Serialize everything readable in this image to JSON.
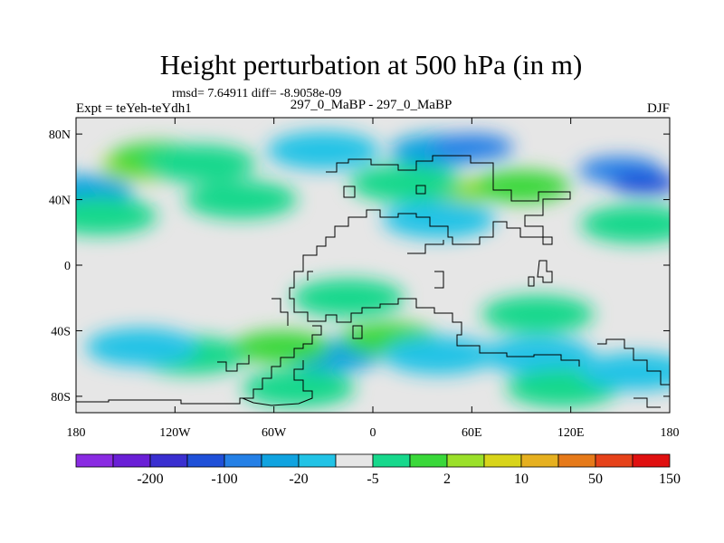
{
  "chart_data": {
    "type": "heatmap",
    "title": "Height perturbation at 500 hPa (in m)",
    "subtitle": "rmsd= 7.64911 diff= -8.9058e-09",
    "left_label": "Expt = teYeh-teYdh1",
    "center_label": "297_0_MaBP - 297_0_MaBP",
    "right_label": "DJF",
    "xlim": [
      -180,
      180
    ],
    "ylim": [
      -90,
      90
    ],
    "x_ticks": [
      {
        "value": -180,
        "label": "180"
      },
      {
        "value": -120,
        "label": "120W"
      },
      {
        "value": -60,
        "label": "60W"
      },
      {
        "value": 0,
        "label": "0"
      },
      {
        "value": 60,
        "label": "60E"
      },
      {
        "value": 120,
        "label": "120E"
      },
      {
        "value": 180,
        "label": "180"
      }
    ],
    "y_ticks": [
      {
        "value": 80,
        "label": "80N"
      },
      {
        "value": 40,
        "label": "40N"
      },
      {
        "value": 0,
        "label": "0"
      },
      {
        "value": -40,
        "label": "40S"
      },
      {
        "value": -80,
        "label": "80S"
      }
    ],
    "colorbar": {
      "colors": [
        "#8a2be2",
        "#6a1fd6",
        "#3a2fd0",
        "#1f50d8",
        "#2580e6",
        "#10a3e0",
        "#22c3e6",
        "#e6e6e6",
        "#17d88c",
        "#3ad83a",
        "#9be02a",
        "#d8d41a",
        "#e6b020",
        "#e67a1a",
        "#e6421a",
        "#e01010"
      ],
      "labels": [
        {
          "boundary": 2,
          "text": "-200"
        },
        {
          "boundary": 4,
          "text": "-100"
        },
        {
          "boundary": 6,
          "text": "-20"
        },
        {
          "boundary": 8,
          "text": "-5"
        },
        {
          "boundary": 10,
          "text": "2"
        },
        {
          "boundary": 12,
          "text": "10"
        },
        {
          "boundary": 14,
          "text": "50"
        },
        {
          "boundary": 16,
          "text": "150"
        }
      ]
    },
    "field_blobs": [
      {
        "lon": -140,
        "lat": 60,
        "level": 3
      },
      {
        "lon": -130,
        "lat": 65,
        "level": 2
      },
      {
        "lon": -105,
        "lat": 62,
        "level": 1
      },
      {
        "lon": -175,
        "lat": 45,
        "level": -2
      },
      {
        "lon": -165,
        "lat": 30,
        "level": 1
      },
      {
        "lon": -80,
        "lat": 40,
        "level": 1
      },
      {
        "lon": -30,
        "lat": 70,
        "level": -1
      },
      {
        "lon": 40,
        "lat": 70,
        "level": -2
      },
      {
        "lon": 60,
        "lat": 72,
        "level": -3
      },
      {
        "lon": 50,
        "lat": 45,
        "level": 3
      },
      {
        "lon": 90,
        "lat": 48,
        "level": 2
      },
      {
        "lon": 20,
        "lat": 50,
        "level": 1
      },
      {
        "lon": 150,
        "lat": 58,
        "level": -3
      },
      {
        "lon": 165,
        "lat": 50,
        "level": -4
      },
      {
        "lon": 160,
        "lat": 25,
        "level": 1
      },
      {
        "lon": 40,
        "lat": 28,
        "level": -1
      },
      {
        "lon": -25,
        "lat": -55,
        "level": -2
      },
      {
        "lon": -45,
        "lat": -75,
        "level": 1
      },
      {
        "lon": -110,
        "lat": -55,
        "level": 1
      },
      {
        "lon": -140,
        "lat": -50,
        "level": -1
      },
      {
        "lon": -55,
        "lat": -50,
        "level": 2
      },
      {
        "lon": 10,
        "lat": -45,
        "level": 2
      },
      {
        "lon": 40,
        "lat": -55,
        "level": -1
      },
      {
        "lon": 100,
        "lat": -55,
        "level": -1
      },
      {
        "lon": 115,
        "lat": -75,
        "level": 1
      },
      {
        "lon": 160,
        "lat": -65,
        "level": -1
      },
      {
        "lon": -15,
        "lat": -20,
        "level": 1
      },
      {
        "lon": 100,
        "lat": -30,
        "level": 1
      }
    ]
  }
}
